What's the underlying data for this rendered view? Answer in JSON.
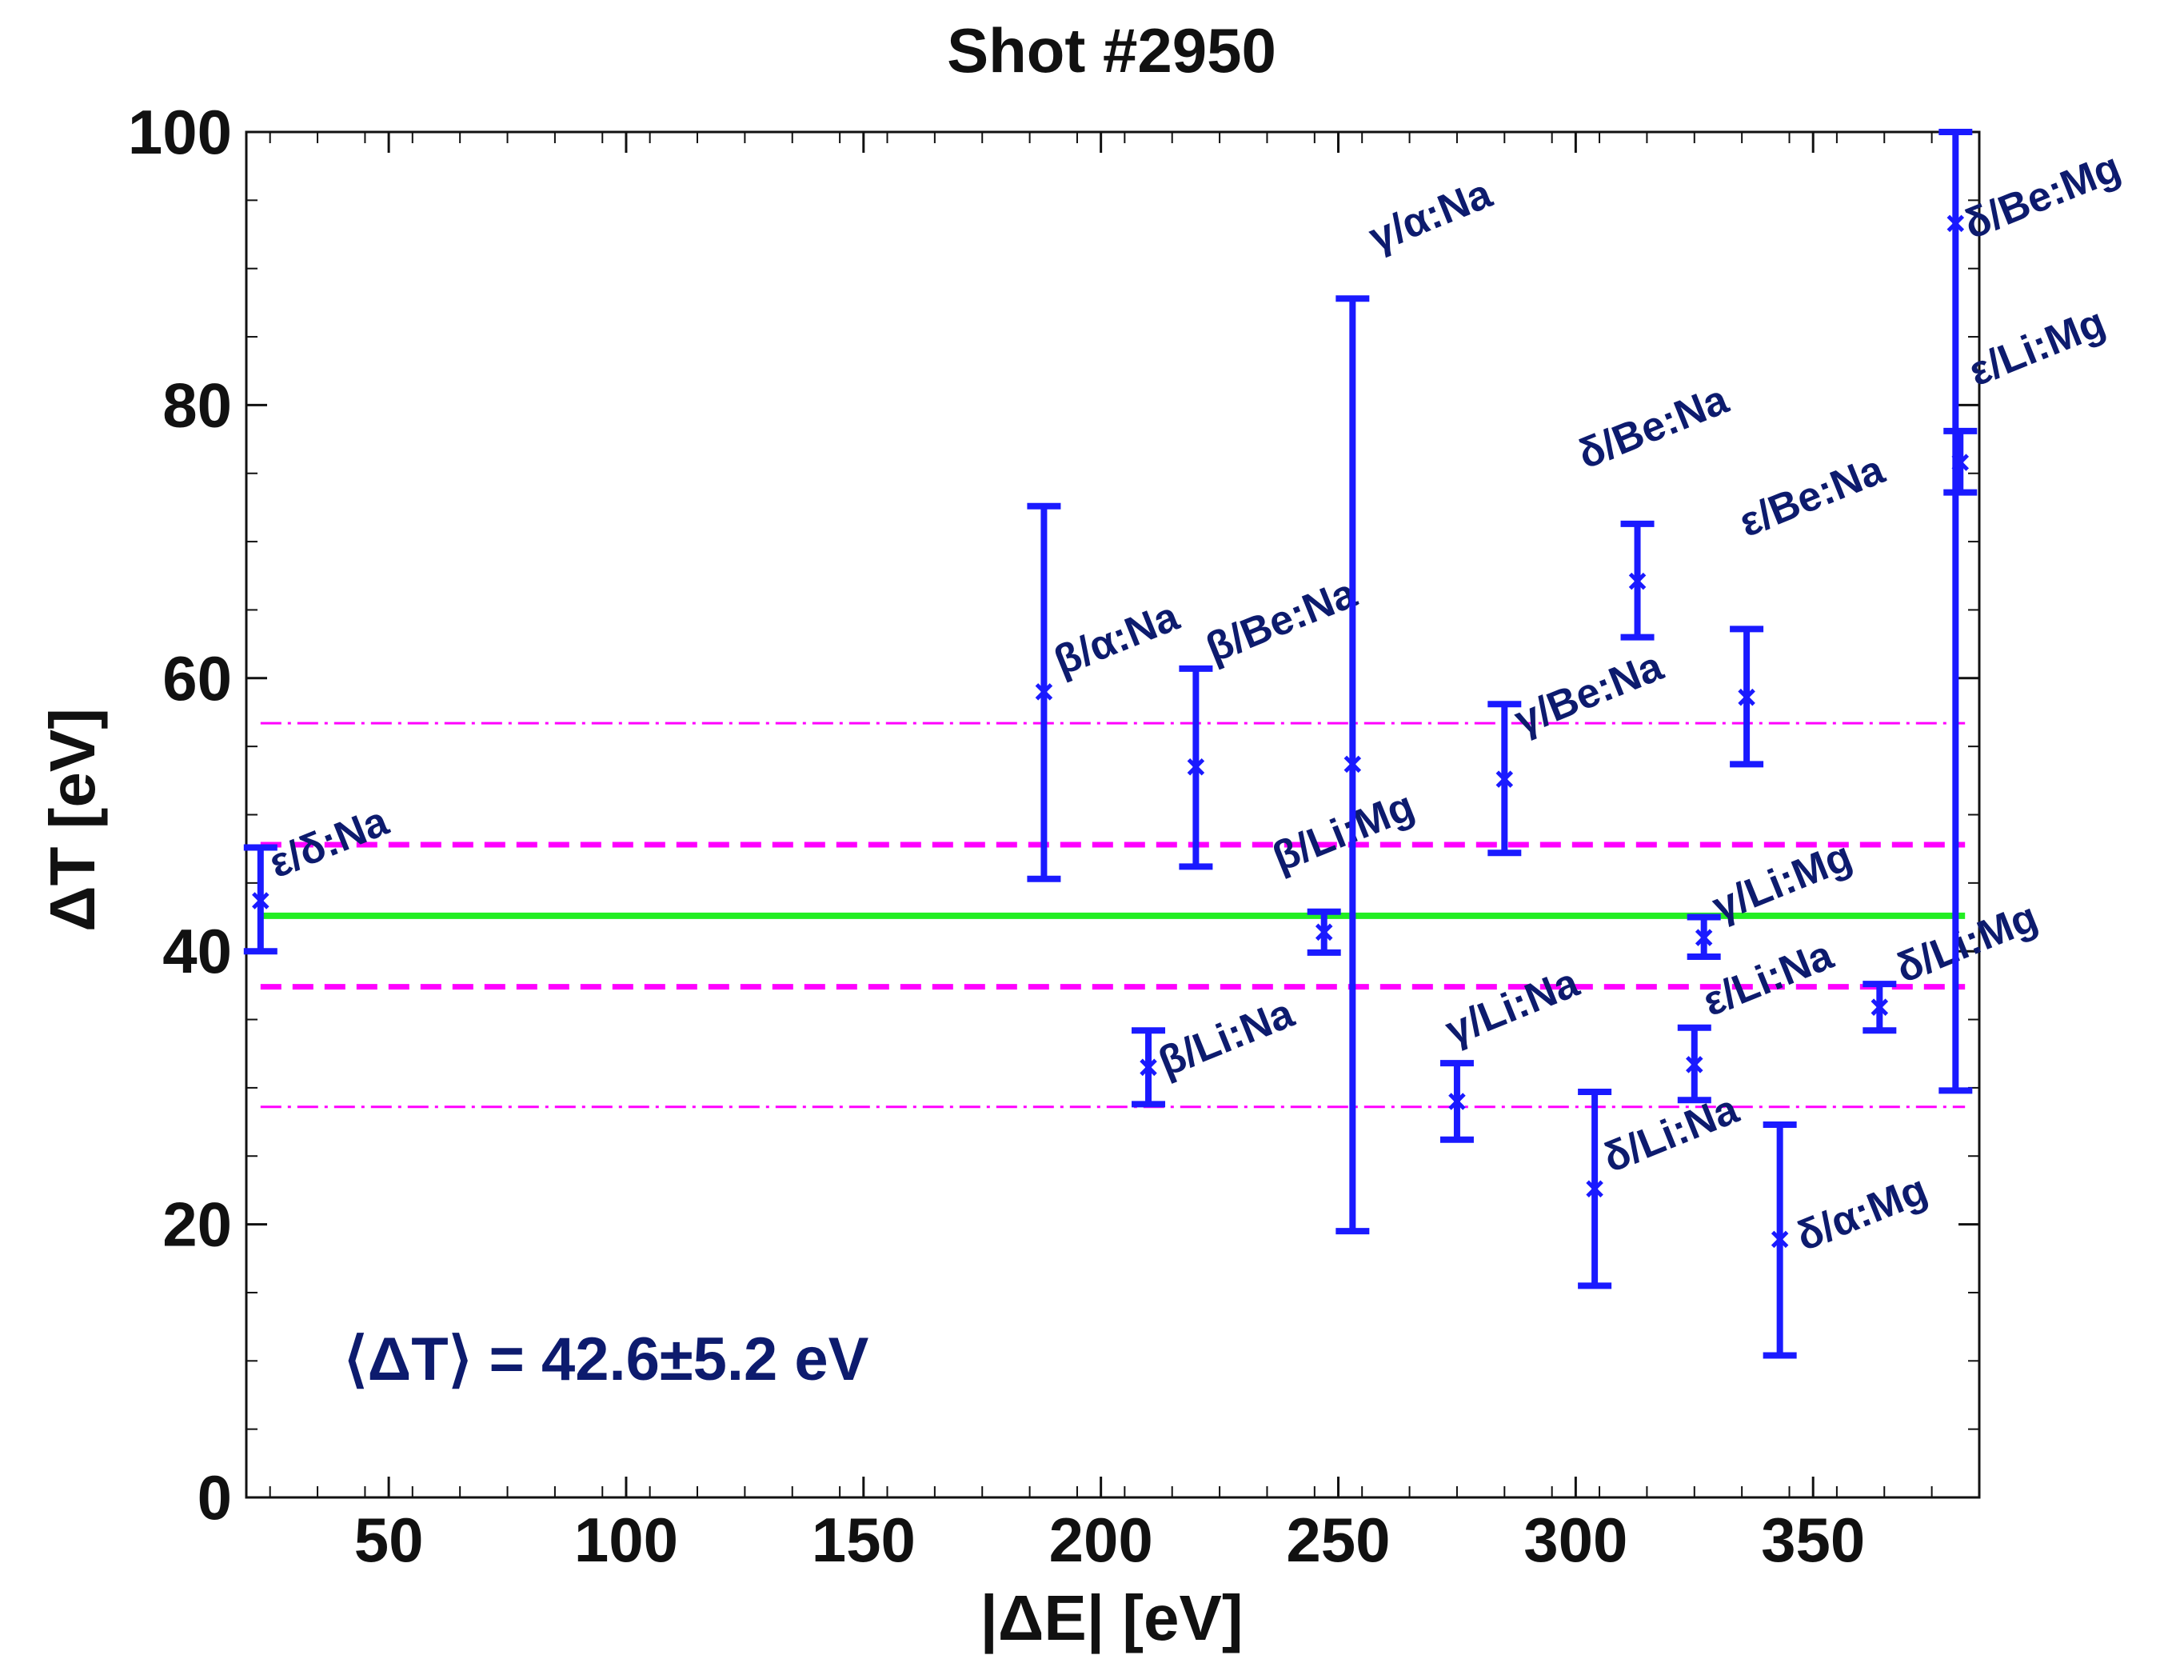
{
  "chart_data": {
    "type": "scatter",
    "title": "Shot #2950",
    "xlabel": "|ΔE| [eV]",
    "ylabel": "ΔT [eV]",
    "xlim": [
      20,
      385
    ],
    "ylim": [
      0,
      100
    ],
    "xticks": [
      50,
      100,
      150,
      200,
      250,
      300,
      350
    ],
    "yticks": [
      0,
      20,
      40,
      60,
      80,
      100
    ],
    "annotation": "⟨ΔT⟩ = 42.6±5.2 eV",
    "colors": {
      "points": "#1a1aff",
      "labels": "#0d1b6e",
      "mean": "#22ee22",
      "band": "#ff00ff"
    },
    "mean": 42.6,
    "band_inner": [
      37.4,
      47.8
    ],
    "band_outer": [
      28.6,
      56.7
    ],
    "points": [
      {
        "label": "ε/δ:Na",
        "x": 23,
        "y": 43.7,
        "lo": 40.0,
        "hi": 47.6
      },
      {
        "label": "β/α:Na",
        "x": 188,
        "y": 59.0,
        "lo": 45.3,
        "hi": 72.6
      },
      {
        "label": "β/Li:Na",
        "x": 210,
        "y": 31.5,
        "lo": 28.8,
        "hi": 34.2
      },
      {
        "label": "β/Be:Na",
        "x": 220,
        "y": 53.5,
        "lo": 46.2,
        "hi": 60.7
      },
      {
        "label": "β/Li:Mg",
        "x": 247,
        "y": 41.4,
        "lo": 39.9,
        "hi": 42.9
      },
      {
        "label": "γ/α:Na",
        "x": 253,
        "y": 53.7,
        "lo": 19.5,
        "hi": 87.8
      },
      {
        "label": "γ/Li:Na",
        "x": 275,
        "y": 29.0,
        "lo": 26.2,
        "hi": 31.8
      },
      {
        "label": "γ/Be:Na",
        "x": 285,
        "y": 52.6,
        "lo": 47.2,
        "hi": 58.1
      },
      {
        "label": "δ/Li:Na",
        "x": 304,
        "y": 22.6,
        "lo": 15.5,
        "hi": 29.7
      },
      {
        "label": "δ/Be:Na",
        "x": 313,
        "y": 67.1,
        "lo": 63.0,
        "hi": 71.3
      },
      {
        "label": "ε/Li:Na",
        "x": 325,
        "y": 31.7,
        "lo": 29.1,
        "hi": 34.4
      },
      {
        "label": "γ/Li:Mg",
        "x": 327,
        "y": 41.0,
        "lo": 39.6,
        "hi": 42.5
      },
      {
        "label": "ε/Be:Na",
        "x": 336,
        "y": 58.6,
        "lo": 53.7,
        "hi": 63.6
      },
      {
        "label": "δ/α:Mg",
        "x": 343,
        "y": 18.9,
        "lo": 10.4,
        "hi": 27.3
      },
      {
        "label": "δ/Li:Mg",
        "x": 364,
        "y": 35.9,
        "lo": 34.2,
        "hi": 37.6
      },
      {
        "label": "δ/Be:Mg",
        "x": 380,
        "y": 93.3,
        "lo": 29.8,
        "hi": 100.0
      },
      {
        "label": "ε/Li:Mg",
        "x": 381,
        "y": 75.8,
        "lo": 73.6,
        "hi": 78.1
      }
    ]
  }
}
